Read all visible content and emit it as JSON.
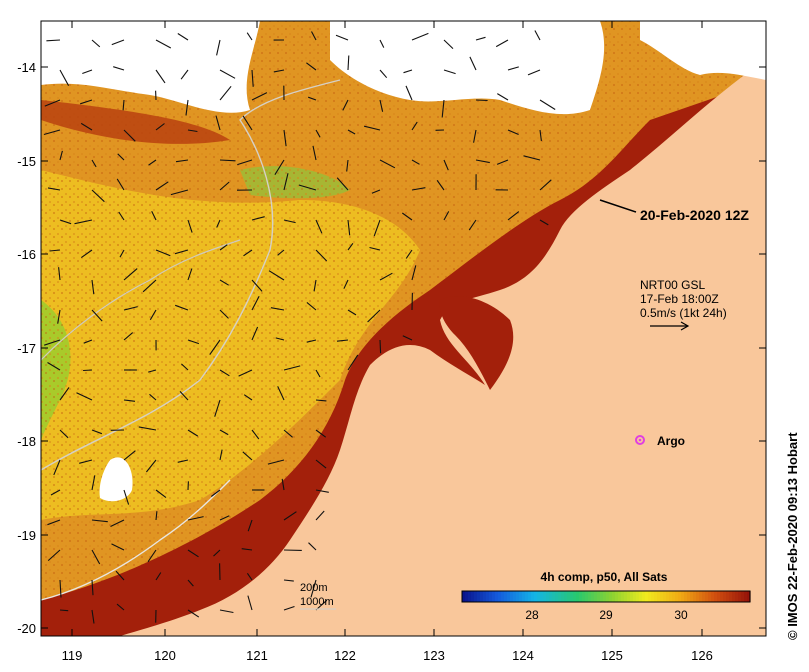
{
  "map": {
    "product_label": "4h comp, p50, All Sats",
    "scale_values": [
      "28",
      "29",
      "30"
    ],
    "timestamp_label": "20-Feb-2020 12Z",
    "current_info": {
      "line1": "NRT00 GSL",
      "line2": "17-Feb 18:00Z",
      "line3": "0.5m/s (1kt 24h)"
    },
    "argo_label": "Argo",
    "depth_legend": {
      "line1": "200m",
      "line2": "1000m"
    },
    "credit": "© IMOS 22-Feb-2020 09:13 Hobart",
    "y_axis_labels": [
      "-14",
      "-15",
      "-16",
      "-17",
      "-18",
      "-19",
      "-20"
    ],
    "x_axis_labels": [
      "119",
      "120",
      "121",
      "122",
      "123",
      "124",
      "125",
      "126"
    ],
    "colors": {
      "land": "#f9c79b",
      "cloud": "#ffffff",
      "sst_warm": "#a11806",
      "sst_mid": "#e0901a",
      "sst_cool": "#f4d020",
      "argo": "#e040e0"
    }
  }
}
